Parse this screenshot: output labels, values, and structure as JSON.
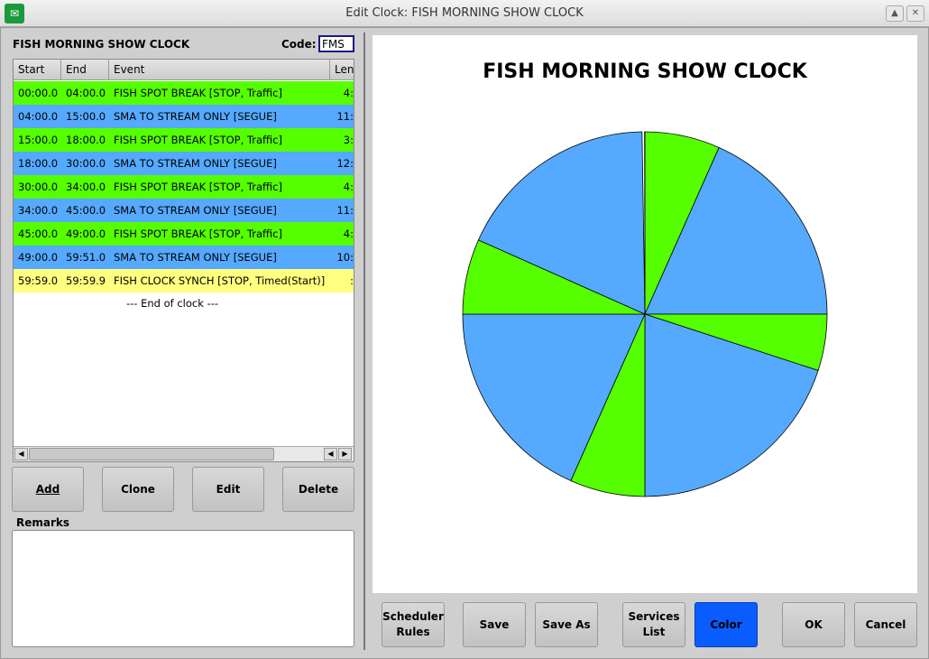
{
  "window": {
    "title": "Edit Clock: FISH MORNING SHOW CLOCK"
  },
  "clock": {
    "name": "FISH MORNING SHOW CLOCK",
    "code_label": "Code:",
    "code": "FMS"
  },
  "table": {
    "columns": [
      "Start",
      "End",
      "Event",
      "Len"
    ],
    "rows": [
      {
        "start": "00:00.0",
        "end": "04:00.0",
        "event": "FISH SPOT BREAK [STOP, Traffic]",
        "len": "4:",
        "color": "#55ff00"
      },
      {
        "start": "04:00.0",
        "end": "15:00.0",
        "event": "SMA TO STREAM ONLY [SEGUE]",
        "len": "11:",
        "color": "#55aaff"
      },
      {
        "start": "15:00.0",
        "end": "18:00.0",
        "event": "FISH SPOT BREAK [STOP, Traffic]",
        "len": "3:",
        "color": "#55ff00"
      },
      {
        "start": "18:00.0",
        "end": "30:00.0",
        "event": "SMA TO STREAM ONLY [SEGUE]",
        "len": "12:",
        "color": "#55aaff"
      },
      {
        "start": "30:00.0",
        "end": "34:00.0",
        "event": "FISH SPOT BREAK [STOP, Traffic]",
        "len": "4:",
        "color": "#55ff00"
      },
      {
        "start": "34:00.0",
        "end": "45:00.0",
        "event": "SMA TO STREAM ONLY [SEGUE]",
        "len": "11:",
        "color": "#55aaff"
      },
      {
        "start": "45:00.0",
        "end": "49:00.0",
        "event": "FISH SPOT BREAK [STOP, Traffic]",
        "len": "4:",
        "color": "#55ff00"
      },
      {
        "start": "49:00.0",
        "end": "59:51.0",
        "event": "SMA TO STREAM ONLY [SEGUE]",
        "len": "10:",
        "color": "#55aaff"
      },
      {
        "start": "59:59.0",
        "end": "59:59.9",
        "event": "FISH CLOCK SYNCH [STOP, Timed(Start)]",
        "len": ":",
        "color": "#ffff80"
      }
    ],
    "end_text": "--- End of clock ---"
  },
  "buttons": {
    "add": "Add",
    "clone": "Clone",
    "edit": "Edit",
    "delete": "Delete",
    "scheduler_rules": "Scheduler\nRules",
    "save": "Save",
    "save_as": "Save As",
    "services_list": "Services\nList",
    "color": "Color",
    "ok": "OK",
    "cancel": "Cancel"
  },
  "remarks": {
    "label": "Remarks",
    "value": ""
  },
  "chart_data": {
    "type": "pie",
    "title": "FISH MORNING SHOW CLOCK",
    "unit": "minutes",
    "start": "top",
    "direction": "clockwise",
    "slices": [
      {
        "from": 0,
        "to": 4,
        "color": "#55ff00"
      },
      {
        "from": 4,
        "to": 15,
        "color": "#55aaff"
      },
      {
        "from": 15,
        "to": 18,
        "color": "#55ff00"
      },
      {
        "from": 18,
        "to": 30,
        "color": "#55aaff"
      },
      {
        "from": 30,
        "to": 34,
        "color": "#55ff00"
      },
      {
        "from": 34,
        "to": 45,
        "color": "#55aaff"
      },
      {
        "from": 45,
        "to": 49,
        "color": "#55ff00"
      },
      {
        "from": 49,
        "to": 59.85,
        "color": "#55aaff"
      },
      {
        "from": 59.983,
        "to": 59.998,
        "color": "#ffff80"
      }
    ]
  },
  "colors": {
    "color_button": "#0a5cff"
  }
}
